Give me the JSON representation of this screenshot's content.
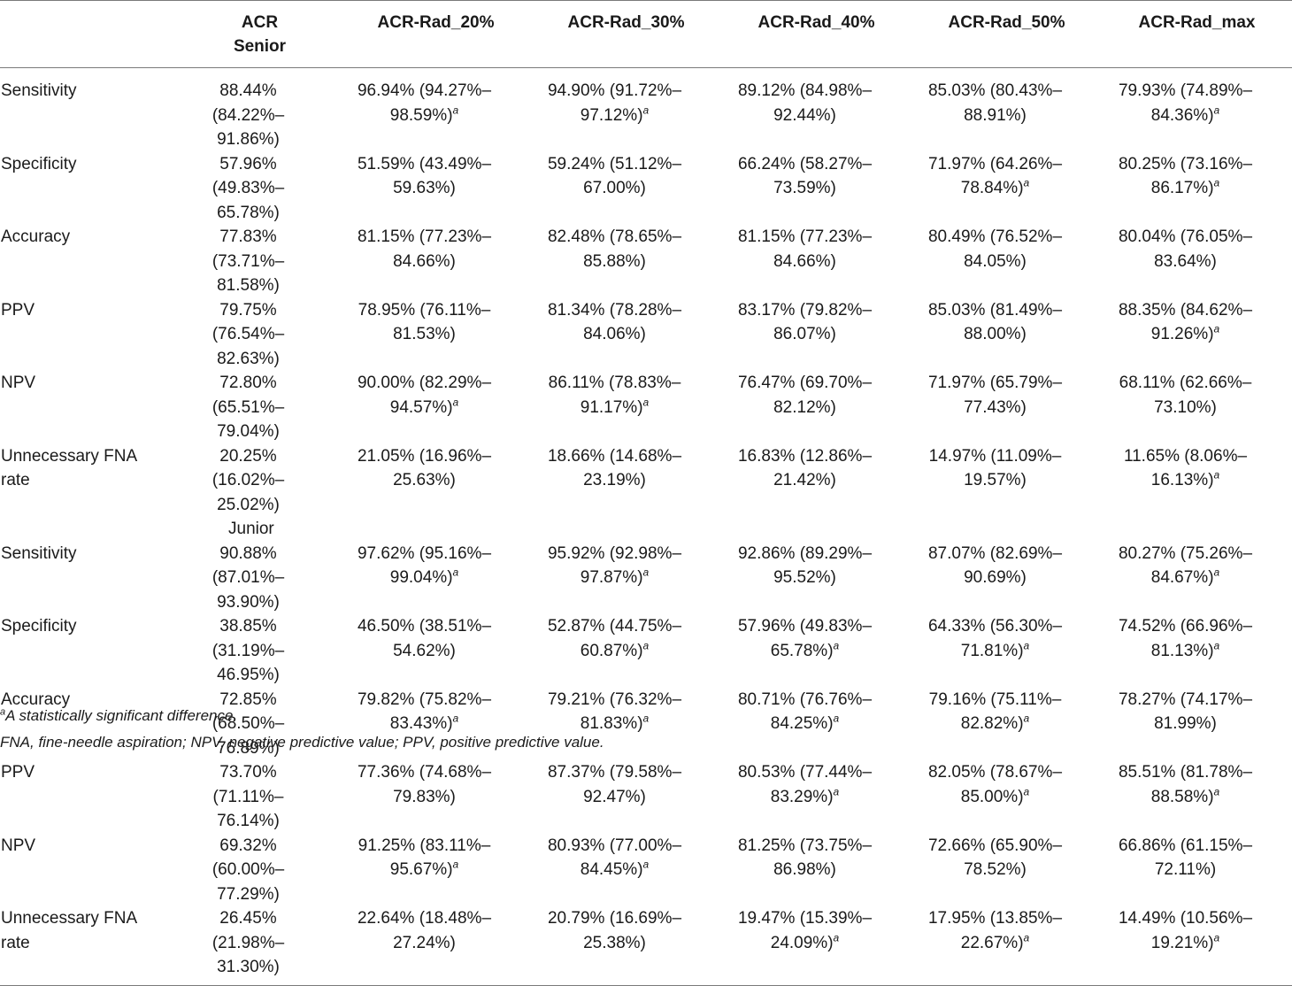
{
  "table": {
    "headers": [
      {
        "lines": [
          "",
          ""
        ]
      },
      {
        "lines": [
          "ACR",
          "Senior"
        ]
      },
      {
        "lines": [
          "ACR-Rad_20%"
        ]
      },
      {
        "lines": [
          "ACR-Rad_30%"
        ]
      },
      {
        "lines": [
          "ACR-Rad_40%"
        ]
      },
      {
        "lines": [
          "ACR-Rad_50%"
        ]
      },
      {
        "lines": [
          "ACR-Rad_max"
        ]
      }
    ],
    "senior_rows": [
      {
        "label": [
          "Sensitivity"
        ],
        "cells": [
          {
            "l1": "88.44% (84.22%–",
            "l2": "91.86%)",
            "sig": ""
          },
          {
            "l1": "96.94% (94.27%–",
            "l2": "98.59%)",
            "sig": "a"
          },
          {
            "l1": "94.90% (91.72%–",
            "l2": "97.12%)",
            "sig": "a"
          },
          {
            "l1": "89.12% (84.98%–",
            "l2": "92.44%)",
            "sig": ""
          },
          {
            "l1": "85.03% (80.43%–",
            "l2": "88.91%)",
            "sig": ""
          },
          {
            "l1": "79.93% (74.89%–",
            "l2": "84.36%)",
            "sig": "a"
          }
        ]
      },
      {
        "label": [
          "Specificity"
        ],
        "cells": [
          {
            "l1": "57.96% (49.83%–",
            "l2": "65.78%)",
            "sig": ""
          },
          {
            "l1": "51.59% (43.49%–",
            "l2": "59.63%)",
            "sig": ""
          },
          {
            "l1": "59.24% (51.12%–",
            "l2": "67.00%)",
            "sig": ""
          },
          {
            "l1": "66.24% (58.27%–",
            "l2": "73.59%)",
            "sig": ""
          },
          {
            "l1": "71.97% (64.26%–",
            "l2": "78.84%)",
            "sig": "a"
          },
          {
            "l1": "80.25% (73.16%–",
            "l2": "86.17%)",
            "sig": "a"
          }
        ]
      },
      {
        "label": [
          "Accuracy"
        ],
        "cells": [
          {
            "l1": "77.83% (73.71%–",
            "l2": "81.58%)",
            "sig": ""
          },
          {
            "l1": "81.15% (77.23%–",
            "l2": "84.66%)",
            "sig": ""
          },
          {
            "l1": "82.48% (78.65%–",
            "l2": "85.88%)",
            "sig": ""
          },
          {
            "l1": "81.15% (77.23%–",
            "l2": "84.66%)",
            "sig": ""
          },
          {
            "l1": "80.49% (76.52%–",
            "l2": "84.05%)",
            "sig": ""
          },
          {
            "l1": "80.04% (76.05%–",
            "l2": "83.64%)",
            "sig": ""
          }
        ]
      },
      {
        "label": [
          "PPV"
        ],
        "cells": [
          {
            "l1": "79.75% (76.54%–",
            "l2": "82.63%)",
            "sig": ""
          },
          {
            "l1": "78.95% (76.11%–",
            "l2": "81.53%)",
            "sig": ""
          },
          {
            "l1": "81.34% (78.28%–",
            "l2": "84.06%)",
            "sig": ""
          },
          {
            "l1": "83.17% (79.82%–",
            "l2": "86.07%)",
            "sig": ""
          },
          {
            "l1": "85.03% (81.49%–",
            "l2": "88.00%)",
            "sig": ""
          },
          {
            "l1": "88.35% (84.62%–",
            "l2": "91.26%)",
            "sig": "a"
          }
        ]
      },
      {
        "label": [
          "NPV"
        ],
        "cells": [
          {
            "l1": "72.80% (65.51%–",
            "l2": "79.04%)",
            "sig": ""
          },
          {
            "l1": "90.00% (82.29%–",
            "l2": "94.57%)",
            "sig": "a"
          },
          {
            "l1": "86.11% (78.83%–",
            "l2": "91.17%)",
            "sig": "a"
          },
          {
            "l1": "76.47% (69.70%–",
            "l2": "82.12%)",
            "sig": ""
          },
          {
            "l1": "71.97% (65.79%–",
            "l2": "77.43%)",
            "sig": ""
          },
          {
            "l1": "68.11% (62.66%–",
            "l2": "73.10%)",
            "sig": ""
          }
        ]
      },
      {
        "label": [
          "Unnecessary FNA",
          "rate"
        ],
        "cells": [
          {
            "l1": "20.25% (16.02%–",
            "l2": "25.02%)",
            "sig": ""
          },
          {
            "l1": "21.05% (16.96%–",
            "l2": "25.63%)",
            "sig": ""
          },
          {
            "l1": "18.66% (14.68%–",
            "l2": "23.19%)",
            "sig": ""
          },
          {
            "l1": "16.83% (12.86%–",
            "l2": "21.42%)",
            "sig": ""
          },
          {
            "l1": "14.97% (11.09%–",
            "l2": "19.57%)",
            "sig": ""
          },
          {
            "l1": "11.65% (8.06%–",
            "l2": "16.13%)",
            "sig": "a"
          }
        ]
      }
    ],
    "junior_label": "Junior",
    "junior_rows": [
      {
        "label": [
          "Sensitivity"
        ],
        "cells": [
          {
            "l1": "90.88% (87.01%–",
            "l2": "93.90%)",
            "sig": ""
          },
          {
            "l1": "97.62% (95.16%–",
            "l2": "99.04%)",
            "sig": "a"
          },
          {
            "l1": "95.92% (92.98%–",
            "l2": "97.87%)",
            "sig": "a"
          },
          {
            "l1": "92.86% (89.29%–",
            "l2": "95.52%)",
            "sig": ""
          },
          {
            "l1": "87.07% (82.69%–",
            "l2": "90.69%)",
            "sig": ""
          },
          {
            "l1": "80.27% (75.26%–",
            "l2": "84.67%)",
            "sig": "a"
          }
        ]
      },
      {
        "label": [
          "Specificity"
        ],
        "cells": [
          {
            "l1": "38.85% (31.19%–",
            "l2": "46.95%)",
            "sig": ""
          },
          {
            "l1": "46.50% (38.51%–",
            "l2": "54.62%)",
            "sig": ""
          },
          {
            "l1": "52.87% (44.75%–",
            "l2": "60.87%)",
            "sig": "a"
          },
          {
            "l1": "57.96% (49.83%–",
            "l2": "65.78%)",
            "sig": "a"
          },
          {
            "l1": "64.33% (56.30%–",
            "l2": "71.81%)",
            "sig": "a"
          },
          {
            "l1": "74.52% (66.96%–",
            "l2": "81.13%)",
            "sig": "a"
          }
        ]
      },
      {
        "label": [
          "Accuracy"
        ],
        "cells": [
          {
            "l1": "72.85% (68.50%–",
            "l2": "76.89%)",
            "sig": ""
          },
          {
            "l1": "79.82% (75.82%–",
            "l2": "83.43%)",
            "sig": "a"
          },
          {
            "l1": "79.21% (76.32%–",
            "l2": "81.83%)",
            "sig": "a"
          },
          {
            "l1": "80.71% (76.76%–",
            "l2": "84.25%)",
            "sig": "a"
          },
          {
            "l1": "79.16% (75.11%–",
            "l2": "82.82%)",
            "sig": "a"
          },
          {
            "l1": "78.27% (74.17%–",
            "l2": "81.99%)",
            "sig": ""
          }
        ]
      },
      {
        "label": [
          "PPV"
        ],
        "cells": [
          {
            "l1": "73.70% (71.11%–",
            "l2": "76.14%)",
            "sig": ""
          },
          {
            "l1": "77.36% (74.68%–",
            "l2": "79.83%)",
            "sig": ""
          },
          {
            "l1": "87.37% (79.58%–",
            "l2": "92.47%)",
            "sig": ""
          },
          {
            "l1": "80.53% (77.44%–",
            "l2": "83.29%)",
            "sig": "a"
          },
          {
            "l1": "82.05% (78.67%–",
            "l2": "85.00%)",
            "sig": "a"
          },
          {
            "l1": "85.51% (81.78%–",
            "l2": "88.58%)",
            "sig": "a"
          }
        ]
      },
      {
        "label": [
          "NPV"
        ],
        "cells": [
          {
            "l1": "69.32% (60.00%–",
            "l2": "77.29%)",
            "sig": ""
          },
          {
            "l1": "91.25% (83.11%–",
            "l2": "95.67%)",
            "sig": "a"
          },
          {
            "l1": "80.93% (77.00%–",
            "l2": "84.45%)",
            "sig": "a"
          },
          {
            "l1": "81.25% (73.75%–",
            "l2": "86.98%)",
            "sig": ""
          },
          {
            "l1": "72.66% (65.90%–",
            "l2": "78.52%)",
            "sig": ""
          },
          {
            "l1": "66.86% (61.15%–",
            "l2": "72.11%)",
            "sig": ""
          }
        ]
      },
      {
        "label": [
          "Unnecessary FNA",
          "rate"
        ],
        "cells": [
          {
            "l1": "26.45% (21.98%–",
            "l2": "31.30%)",
            "sig": ""
          },
          {
            "l1": "22.64% (18.48%–",
            "l2": "27.24%)",
            "sig": ""
          },
          {
            "l1": "20.79% (16.69%–",
            "l2": "25.38%)",
            "sig": ""
          },
          {
            "l1": "19.47% (15.39%–",
            "l2": "24.09%)",
            "sig": "a"
          },
          {
            "l1": "17.95% (13.85%–",
            "l2": "22.67%)",
            "sig": "a"
          },
          {
            "l1": "14.49% (10.56%–",
            "l2": "19.21%)",
            "sig": "a"
          }
        ]
      }
    ]
  },
  "footnotes": {
    "sig_marker": "a",
    "sig_text": "A statistically significant difference.",
    "abbrev": "FNA, fine-needle aspiration; NPV, negative predictive value; PPV, positive predictive value."
  }
}
